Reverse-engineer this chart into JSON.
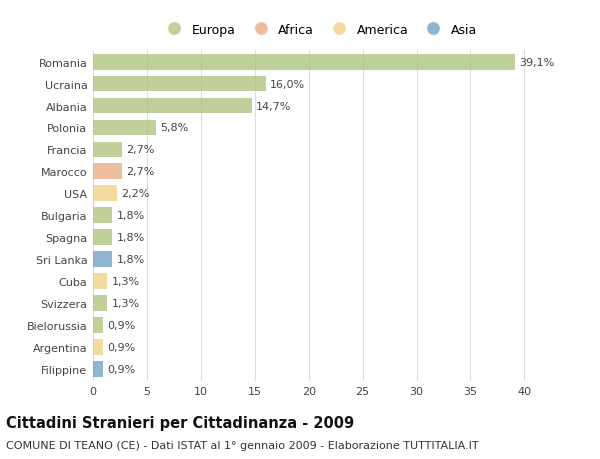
{
  "categories": [
    "Romania",
    "Ucraina",
    "Albania",
    "Polonia",
    "Francia",
    "Marocco",
    "USA",
    "Bulgaria",
    "Spagna",
    "Sri Lanka",
    "Cuba",
    "Svizzera",
    "Bielorussia",
    "Argentina",
    "Filippine"
  ],
  "values": [
    39.1,
    16.0,
    14.7,
    5.8,
    2.7,
    2.7,
    2.2,
    1.8,
    1.8,
    1.8,
    1.3,
    1.3,
    0.9,
    0.9,
    0.9
  ],
  "labels": [
    "39,1%",
    "16,0%",
    "14,7%",
    "5,8%",
    "2,7%",
    "2,7%",
    "2,2%",
    "1,8%",
    "1,8%",
    "1,8%",
    "1,3%",
    "1,3%",
    "0,9%",
    "0,9%",
    "0,9%"
  ],
  "continents": [
    "Europa",
    "Europa",
    "Europa",
    "Europa",
    "Europa",
    "Africa",
    "America",
    "Europa",
    "Europa",
    "Asia",
    "America",
    "Europa",
    "Europa",
    "America",
    "Asia"
  ],
  "colors": {
    "Europa": "#adc178",
    "Africa": "#e8a87c",
    "America": "#f0d080",
    "Asia": "#6b9dc2"
  },
  "bar_alpha": 0.75,
  "xlim": [
    0,
    42
  ],
  "xticks": [
    0,
    5,
    10,
    15,
    20,
    25,
    30,
    35,
    40
  ],
  "title": "Cittadini Stranieri per Cittadinanza - 2009",
  "subtitle": "COMUNE DI TEANO (CE) - Dati ISTAT al 1° gennaio 2009 - Elaborazione TUTTITALIA.IT",
  "background_color": "#ffffff",
  "grid_color": "#dddddd",
  "bar_height": 0.72,
  "label_fontsize": 8.0,
  "tick_fontsize": 8.0,
  "title_fontsize": 10.5,
  "subtitle_fontsize": 8.0,
  "legend_order": [
    "Europa",
    "Africa",
    "America",
    "Asia"
  ]
}
